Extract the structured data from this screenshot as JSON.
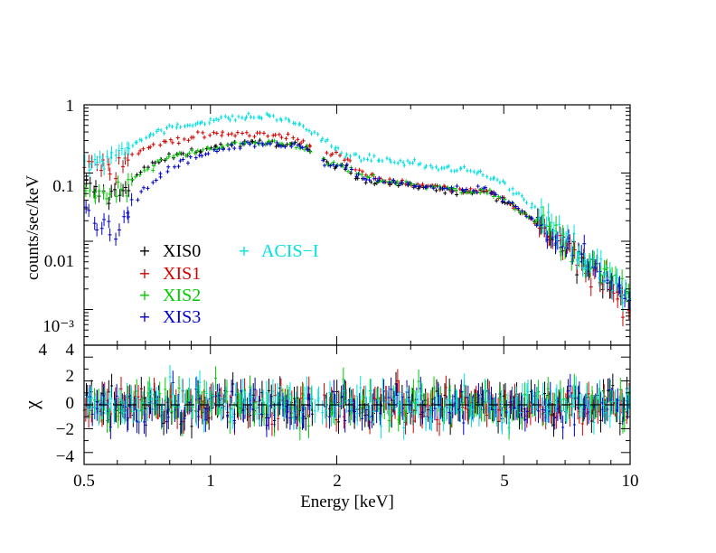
{
  "chart_data": [
    {
      "panel": "spectrum",
      "type": "scatter",
      "xlabel": "Energy [keV]",
      "ylabel": "counts/sec/keV",
      "xscale": "log",
      "yscale": "log",
      "xlim": [
        0.5,
        10
      ],
      "ylim": [
        0.0003,
        1
      ],
      "x_tick_labels": [
        "0.5",
        "1",
        "2",
        "5",
        "10"
      ],
      "y_tick_labels": [
        "1",
        "0.1",
        "0.01",
        "10⁻³",
        "4"
      ],
      "legend": [
        "XIS0",
        "XIS1",
        "XIS2",
        "XIS3",
        "ACIS−I"
      ],
      "legend_placement": "lower-left inside",
      "series": [
        {
          "name": "XIS0",
          "color": "#000000",
          "x": [
            0.5,
            0.55,
            0.6,
            0.7,
            0.8,
            1.0,
            1.2,
            1.4,
            1.6,
            1.7,
            1.9,
            2.1,
            2.3,
            2.5,
            3,
            3.5,
            4,
            4.5,
            5,
            5.5,
            6,
            7,
            8,
            9,
            10
          ],
          "y": [
            0.07,
            0.045,
            0.05,
            0.12,
            0.17,
            0.24,
            0.27,
            0.28,
            0.26,
            0.23,
            0.13,
            0.12,
            0.08,
            0.075,
            0.065,
            0.058,
            0.052,
            0.055,
            0.038,
            0.026,
            0.018,
            0.008,
            0.004,
            0.0025,
            0.0015
          ]
        },
        {
          "name": "XIS1",
          "color": "#d40000",
          "x": [
            0.5,
            0.55,
            0.6,
            0.7,
            0.8,
            1.0,
            1.2,
            1.4,
            1.6,
            1.7,
            1.9,
            2.1,
            2.3,
            2.5,
            3,
            3.5,
            4,
            4.5,
            5,
            5.5,
            6,
            7,
            8,
            9,
            10
          ],
          "y": [
            0.15,
            0.13,
            0.14,
            0.23,
            0.3,
            0.36,
            0.38,
            0.36,
            0.32,
            0.28,
            0.2,
            0.16,
            0.1,
            0.085,
            0.07,
            0.062,
            0.055,
            0.058,
            0.04,
            0.028,
            0.018,
            0.008,
            0.0035,
            0.0018,
            0.001
          ]
        },
        {
          "name": "XIS2",
          "color": "#00cc00",
          "x": [
            0.5,
            0.55,
            0.6,
            0.7,
            0.8,
            1.0,
            1.2,
            1.4,
            1.6,
            1.7,
            1.9,
            2.1,
            2.3,
            2.5,
            3,
            3.5,
            4,
            4.5,
            5,
            5.5,
            6,
            7,
            8,
            9,
            10
          ],
          "y": [
            0.06,
            0.045,
            0.055,
            0.11,
            0.17,
            0.24,
            0.27,
            0.28,
            0.26,
            0.23,
            0.14,
            0.12,
            0.09,
            0.08,
            0.068,
            0.06,
            0.054,
            0.057,
            0.04,
            0.028,
            0.019,
            0.009,
            0.0045,
            0.003,
            0.0018
          ]
        },
        {
          "name": "XIS3",
          "color": "#0000cc",
          "x": [
            0.5,
            0.55,
            0.6,
            0.7,
            0.8,
            1.0,
            1.2,
            1.4,
            1.6,
            1.7,
            1.9,
            2.1,
            2.3,
            2.5,
            3,
            3.5,
            4,
            4.5,
            5,
            5.5,
            6,
            7,
            8,
            9,
            10
          ],
          "y": [
            0.03,
            0.018,
            0.015,
            0.06,
            0.12,
            0.2,
            0.25,
            0.27,
            0.25,
            0.22,
            0.13,
            0.12,
            0.085,
            0.078,
            0.067,
            0.06,
            0.055,
            0.058,
            0.04,
            0.028,
            0.019,
            0.009,
            0.0045,
            0.0028,
            0.0016
          ]
        },
        {
          "name": "ACIS−I",
          "color": "#00e0e0",
          "x": [
            0.5,
            0.55,
            0.6,
            0.7,
            0.8,
            1.0,
            1.2,
            1.4,
            1.6,
            1.8,
            2.0,
            2.2,
            2.5,
            3,
            3.5,
            4,
            4.5,
            5,
            5.5,
            6,
            7,
            8,
            9,
            10
          ],
          "y": [
            0.12,
            0.15,
            0.2,
            0.35,
            0.45,
            0.6,
            0.66,
            0.67,
            0.55,
            0.35,
            0.22,
            0.17,
            0.16,
            0.14,
            0.12,
            0.11,
            0.1,
            0.07,
            0.045,
            0.028,
            0.012,
            0.005,
            0.0028,
            0.0015
          ]
        }
      ]
    },
    {
      "panel": "residuals",
      "type": "scatter",
      "ylabel": "χ",
      "xscale": "log",
      "xlim": [
        0.5,
        10
      ],
      "ylim": [
        -5,
        5
      ],
      "y_tick_labels": [
        "−4",
        "−2",
        "0",
        "2",
        "4"
      ],
      "reference_line": {
        "y": 0,
        "style": "dashed"
      },
      "series_colors": [
        "#000000",
        "#d40000",
        "#00cc00",
        "#0000cc",
        "#00e0e0"
      ],
      "residual_spread": 1.3
    }
  ]
}
